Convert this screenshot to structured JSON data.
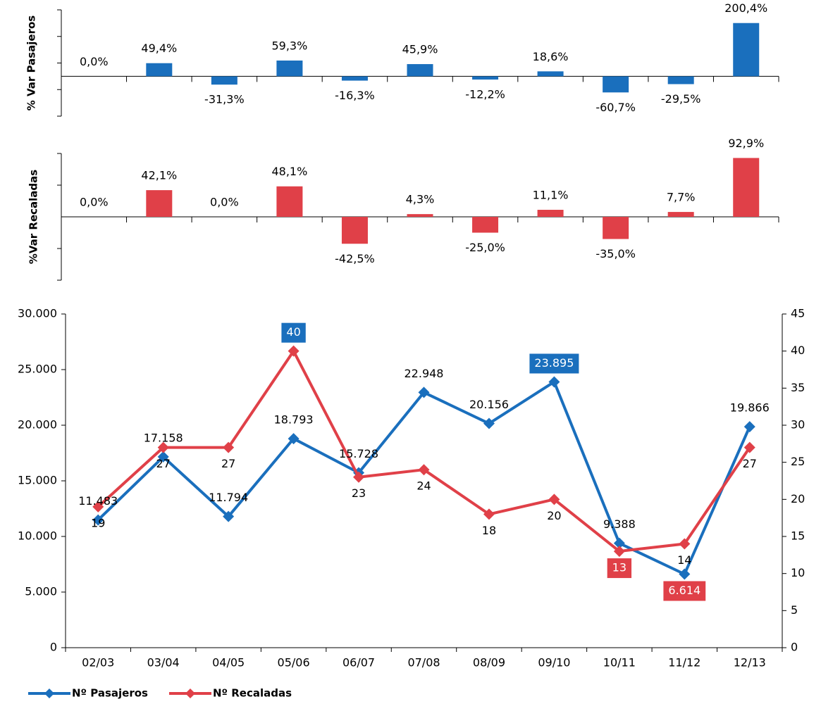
{
  "chart_data": [
    {
      "type": "bar",
      "ylabel": "% Var Pasajeros",
      "color": "#1a6fbd",
      "values": [
        0.0,
        49.4,
        -31.3,
        59.3,
        -16.3,
        45.9,
        -12.2,
        18.6,
        -60.7,
        -29.5,
        200.4
      ],
      "value_labels": [
        "0,0%",
        "49,4%",
        "-31,3%",
        "59,3%",
        "-16,3%",
        "45,9%",
        "-12,2%",
        "18,6%",
        "-60,7%",
        "-29,5%",
        "200,4%"
      ],
      "ylim": [
        -150,
        250
      ],
      "yticks": [
        -150,
        -50,
        50,
        150,
        250
      ]
    },
    {
      "type": "bar",
      "ylabel": "%Var Recaladas",
      "color": "#e04048",
      "values": [
        0.0,
        42.1,
        0.0,
        48.1,
        -42.5,
        4.3,
        -25.0,
        11.1,
        -35.0,
        7.7,
        92.9
      ],
      "value_labels": [
        "0,0%",
        "42,1%",
        "0,0%",
        "48,1%",
        "-42,5%",
        "4,3%",
        "-25,0%",
        "11,1%",
        "-35,0%",
        "7,7%",
        "92,9%"
      ],
      "ylim": [
        -100,
        100
      ],
      "yticks": [
        -100,
        -50,
        50,
        100
      ]
    },
    {
      "type": "line",
      "categories": [
        "02/03",
        "03/04",
        "04/05",
        "05/06",
        "06/07",
        "07/08",
        "08/09",
        "09/10",
        "10/11",
        "11/12",
        "12/13"
      ],
      "series": [
        {
          "name": "Nº Pasajeros",
          "color": "#1a6fbd",
          "values": [
            11483,
            17158,
            11794,
            18793,
            15728,
            22948,
            20156,
            23895,
            9388,
            6614,
            19866
          ],
          "value_labels": [
            "11.483",
            "17.158",
            "11.794",
            "18.793",
            "15.728",
            "22.948",
            "20.156",
            "23.895",
            "9.388",
            "6.614",
            "19.866"
          ]
        },
        {
          "name": "Nº Recaladas",
          "color": "#e04048",
          "axis": "y2",
          "values": [
            19,
            27,
            27,
            40,
            23,
            24,
            18,
            20,
            13,
            14,
            27
          ]
        }
      ],
      "ylim": [
        0,
        30000
      ],
      "yticks": [
        0,
        {
          "value": 5000,
          "label": "5.000"
        },
        {
          "value": 10000,
          "label": "10.000"
        },
        {
          "value": 15000,
          "label": "15.000"
        },
        {
          "value": 20000,
          "label": "20.000"
        },
        {
          "value": 25000,
          "label": "25.000"
        },
        {
          "value": 30000,
          "label": "30.000"
        }
      ],
      "y2lim": [
        0,
        45
      ],
      "y2ticks": [
        0,
        5,
        10,
        15,
        20,
        25,
        30,
        35,
        40,
        45
      ],
      "legend": "bottom-left",
      "max_label_color": "#1a6fbd",
      "min_label_color": "#e04048"
    }
  ]
}
